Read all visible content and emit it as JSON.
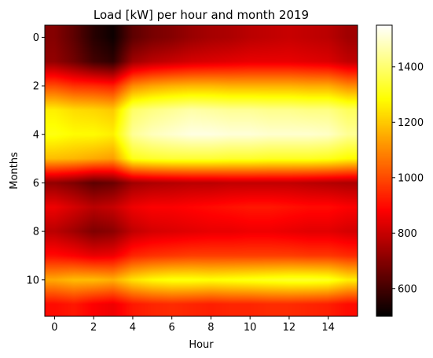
{
  "chart_data": {
    "type": "heatmap",
    "title": "Load [kW] per hour and month 2019",
    "xlabel": "Hour",
    "ylabel": "Months",
    "x": [
      0,
      1,
      2,
      3,
      4,
      5,
      6,
      7,
      8,
      9,
      10,
      11,
      12,
      13,
      14,
      15
    ],
    "y": [
      0,
      1,
      2,
      3,
      4,
      5,
      6,
      7,
      8,
      9,
      10,
      11
    ],
    "x_ticks": [
      "0",
      "2",
      "4",
      "6",
      "8",
      "10",
      "12",
      "14"
    ],
    "y_ticks": [
      "0",
      "2",
      "4",
      "6",
      "8",
      "10"
    ],
    "y_inverted": true,
    "interpolation": "smooth",
    "colormap": "hot",
    "colorbar": {
      "range": [
        500,
        1550
      ],
      "ticks": [
        "600",
        "800",
        "1000",
        "1200",
        "1400"
      ]
    },
    "values": [
      [
        700,
        640,
        560,
        520,
        640,
        680,
        700,
        730,
        750,
        760,
        780,
        790,
        800,
        790,
        780,
        740
      ],
      [
        720,
        670,
        600,
        570,
        740,
        780,
        800,
        820,
        830,
        840,
        850,
        850,
        850,
        840,
        830,
        790
      ],
      [
        1000,
        960,
        950,
        930,
        1100,
        1140,
        1160,
        1170,
        1170,
        1160,
        1160,
        1160,
        1160,
        1150,
        1150,
        1100
      ],
      [
        1260,
        1230,
        1220,
        1200,
        1390,
        1420,
        1440,
        1460,
        1450,
        1440,
        1440,
        1430,
        1430,
        1420,
        1420,
        1380
      ],
      [
        1300,
        1280,
        1280,
        1260,
        1440,
        1480,
        1500,
        1520,
        1520,
        1510,
        1510,
        1500,
        1500,
        1500,
        1490,
        1440
      ],
      [
        1180,
        1170,
        1150,
        1130,
        1310,
        1330,
        1340,
        1340,
        1340,
        1330,
        1330,
        1320,
        1320,
        1320,
        1310,
        1280
      ],
      [
        720,
        690,
        640,
        660,
        740,
        760,
        770,
        780,
        780,
        790,
        790,
        790,
        790,
        780,
        770,
        760
      ],
      [
        860,
        820,
        780,
        800,
        860,
        880,
        880,
        890,
        900,
        910,
        920,
        920,
        910,
        900,
        900,
        880
      ],
      [
        780,
        740,
        690,
        710,
        790,
        820,
        830,
        840,
        850,
        850,
        860,
        860,
        850,
        840,
        840,
        820
      ],
      [
        900,
        880,
        850,
        860,
        940,
        960,
        970,
        980,
        980,
        980,
        980,
        980,
        980,
        970,
        970,
        950
      ],
      [
        1150,
        1180,
        1180,
        1160,
        1240,
        1280,
        1300,
        1300,
        1290,
        1300,
        1310,
        1320,
        1330,
        1330,
        1320,
        1260
      ],
      [
        900,
        920,
        880,
        860,
        920,
        940,
        950,
        940,
        930,
        940,
        940,
        950,
        950,
        940,
        930,
        900
      ]
    ]
  }
}
